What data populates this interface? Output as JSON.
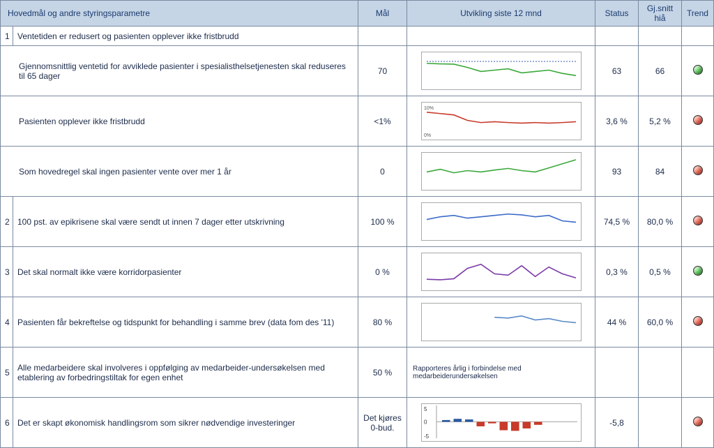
{
  "header": {
    "col_desc": "Hovedmål og andre styringsparametre",
    "col_mal": "Mål",
    "col_utv": "Utvikling siste 12 mnd",
    "col_status": "Status",
    "col_gjs": "Gj.snitt hiå",
    "col_trend": "Trend"
  },
  "rows": [
    {
      "type": "section",
      "num": "1",
      "desc": "Ventetiden er redusert og pasienten opplever ikke fristbrudd"
    },
    {
      "type": "data",
      "desc": "Gjennomsnittlig ventetid for avviklede pasienter i spesialisthelsetjenesten skal reduseres til 65 dager",
      "mal": "70",
      "status": "63",
      "gjs": "66",
      "trend": "green",
      "chart": {
        "color": "#3aa83a",
        "dashed_ref": true,
        "ref_y": 0.18,
        "points": [
          0.25,
          0.27,
          0.28,
          0.4,
          0.55,
          0.5,
          0.45,
          0.6,
          0.55,
          0.5,
          0.62,
          0.7
        ]
      }
    },
    {
      "type": "data",
      "desc": "Pasienten opplever ikke fristbrudd",
      "mal": "<1%",
      "status": "3,6 %",
      "gjs": "5,2 %",
      "trend": "red",
      "chart": {
        "color": "#c83a2a",
        "axis_labels": [
          "10%",
          "0%"
        ],
        "points": [
          0.2,
          0.25,
          0.3,
          0.5,
          0.58,
          0.55,
          0.58,
          0.6,
          0.58,
          0.6,
          0.58,
          0.55
        ]
      }
    },
    {
      "type": "data",
      "desc": "Som hovedregel skal ingen pasienter vente over mer 1 år",
      "mal": "0",
      "status": "93",
      "gjs": "84",
      "trend": "red",
      "chart": {
        "color": "#3aa83a",
        "points": [
          0.55,
          0.45,
          0.58,
          0.5,
          0.55,
          0.48,
          0.42,
          0.5,
          0.55,
          0.4,
          0.25,
          0.1
        ]
      }
    },
    {
      "type": "section",
      "num": "2",
      "desc": "100 pst. av epikrisene skal være sendt ut innen 7 dager etter utskrivning",
      "mal": "100 %",
      "status": "74,5 %",
      "gjs": "80,0 %",
      "trend": "red",
      "chart": {
        "color": "#3a6ac8",
        "points": [
          0.45,
          0.35,
          0.3,
          0.4,
          0.35,
          0.3,
          0.25,
          0.28,
          0.35,
          0.3,
          0.5,
          0.55
        ]
      }
    },
    {
      "type": "section",
      "num": "3",
      "desc": "Det skal normalt ikke være korridorpasienter",
      "mal": "0 %",
      "status": "0,3 %",
      "gjs": "0,5 %",
      "trend": "green",
      "chart": {
        "color": "#7a3aa8",
        "points": [
          0.8,
          0.82,
          0.78,
          0.4,
          0.25,
          0.6,
          0.65,
          0.3,
          0.7,
          0.35,
          0.6,
          0.75
        ]
      }
    },
    {
      "type": "section",
      "num": "4",
      "desc": "Pasienten får bekreftelse og tidspunkt for behandling i samme brev (data fom des '11)",
      "mal": "80 %",
      "status": "44 %",
      "gjs": "60,0 %",
      "trend": "red",
      "chart": {
        "color": "#5a8ac8",
        "partial": true,
        "points": [
          null,
          null,
          null,
          null,
          null,
          0.35,
          0.38,
          0.3,
          0.45,
          0.4,
          0.5,
          0.55
        ]
      }
    },
    {
      "type": "section",
      "num": "5",
      "desc": "Alle medarbeidere skal involveres i oppfølging av medarbeider-undersøkelsen med etablering av forbedringstiltak for egen enhet",
      "mal": "50 %",
      "note": "Rapporteres årlig i forbindelse med medarbeiderundersøkelsen"
    },
    {
      "type": "section",
      "num": "6",
      "desc": "Det er skapt økonomisk handlingsrom som sikrer nødvendige investeringer",
      "mal": "Det kjøres 0-bud.",
      "bar_chart": {
        "pos_color": "#2a5aa0",
        "neg_color": "#c83a2a",
        "y_labels": [
          "5",
          "0",
          "-5"
        ],
        "values": [
          0.6,
          1.0,
          0.8,
          -1.5,
          -0.5,
          -2.8,
          -3.0,
          -2.2,
          -1.0,
          0,
          0,
          0
        ]
      },
      "status": "-5,8",
      "trend": "red"
    }
  ]
}
